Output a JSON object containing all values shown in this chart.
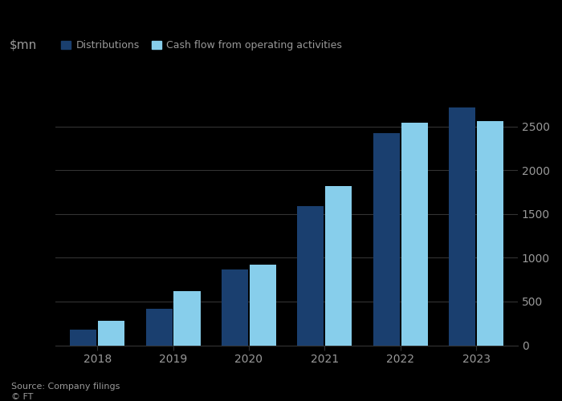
{
  "years": [
    "2018",
    "2019",
    "2020",
    "2021",
    "2022",
    "2023"
  ],
  "distributions": [
    175,
    420,
    870,
    1590,
    2420,
    2720
  ],
  "cash_flow": [
    280,
    620,
    920,
    1820,
    2540,
    2560
  ],
  "dist_color": "#1a3f6f",
  "cash_color": "#87ceeb",
  "ylabel": "$mn",
  "ylim": [
    0,
    3000
  ],
  "yticks": [
    0,
    500,
    1000,
    1500,
    2000,
    2500
  ],
  "legend_dist": "Distributions",
  "legend_cash": "Cash flow from operating activities",
  "source": "Source: Company filings",
  "copyright": "© FT",
  "background_color": "#000000",
  "plot_bg_color": "#000000",
  "text_color": "#999999",
  "grid_color": "#333333"
}
